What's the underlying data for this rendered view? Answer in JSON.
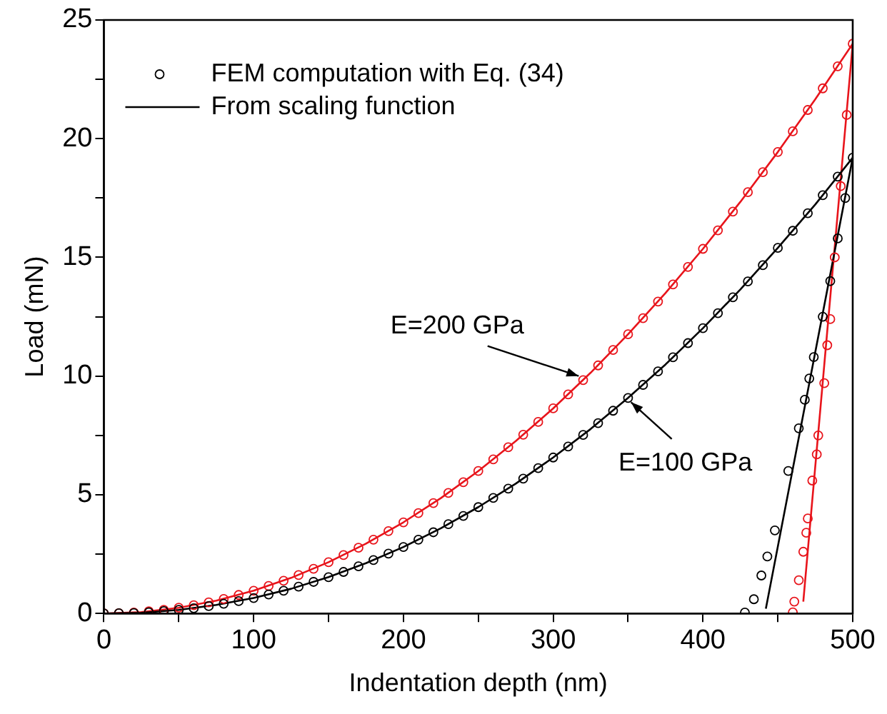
{
  "chart_data": {
    "type": "scatter",
    "xlabel": "Indentation depth (nm)",
    "ylabel": "Load (mN)",
    "xlim": [
      0,
      500
    ],
    "ylim": [
      0,
      25
    ],
    "xticks": [
      0,
      {
        "value": 50,
        "label": null
      },
      100,
      {
        "value": 150,
        "label": null
      },
      200,
      {
        "value": 250,
        "label": null
      },
      300,
      {
        "value": 350,
        "label": null
      },
      400,
      {
        "value": 450,
        "label": null
      },
      500
    ],
    "yticks": [
      0,
      {
        "value": 2.5,
        "label": null
      },
      5,
      {
        "value": 7.5,
        "label": null
      },
      10,
      {
        "value": 12.5,
        "label": null
      },
      15,
      {
        "value": 17.5,
        "label": null
      },
      20,
      {
        "value": 22.5,
        "label": null
      },
      25
    ],
    "grid": false,
    "legend": "top left",
    "series": [
      {
        "name": "FEM computation with Eq. (34)",
        "type": "scatter",
        "marker": "circle",
        "color": "#000000",
        "x": [
          0,
          10,
          20,
          30,
          40,
          50,
          60,
          70,
          80,
          90,
          100,
          110,
          120,
          130,
          140,
          150,
          160,
          170,
          180,
          190,
          200,
          210,
          220,
          230,
          240,
          250,
          260,
          270,
          280,
          290,
          300,
          310,
          320,
          330,
          340,
          350,
          360,
          370,
          380,
          390,
          400,
          410,
          420,
          430,
          440,
          450,
          460,
          470,
          480,
          490,
          500,
          495,
          490,
          485,
          480,
          474,
          471,
          468,
          464,
          457,
          448,
          443,
          439,
          434,
          428
        ],
        "values": [
          0,
          0.01,
          0.02,
          0.05,
          0.1,
          0.15,
          0.22,
          0.31,
          0.41,
          0.52,
          0.65,
          0.8,
          0.96,
          1.13,
          1.33,
          1.53,
          1.75,
          1.99,
          2.25,
          2.52,
          2.8,
          3.11,
          3.42,
          3.76,
          4.11,
          4.48,
          4.87,
          5.26,
          5.68,
          6.12,
          6.57,
          7.03,
          7.52,
          8.02,
          8.54,
          9.08,
          9.63,
          10.2,
          10.79,
          11.39,
          12.02,
          12.65,
          13.32,
          13.99,
          14.67,
          15.4,
          16.12,
          16.86,
          17.62,
          18.4,
          19.2,
          17.5,
          15.8,
          14.0,
          12.5,
          10.8,
          9.9,
          9.0,
          7.8,
          6.0,
          3.5,
          2.4,
          1.6,
          0.6,
          0.04
        ]
      },
      {
        "type": "scatter",
        "marker": "circle",
        "color": "#e8141b",
        "x": [
          0,
          10,
          20,
          30,
          40,
          50,
          60,
          70,
          80,
          90,
          100,
          110,
          120,
          130,
          140,
          150,
          160,
          170,
          180,
          190,
          200,
          210,
          220,
          230,
          240,
          250,
          260,
          270,
          280,
          290,
          300,
          310,
          320,
          330,
          340,
          350,
          360,
          370,
          380,
          390,
          400,
          410,
          420,
          430,
          440,
          450,
          460,
          470,
          480,
          490,
          500,
          496,
          492,
          488,
          485,
          483,
          481,
          477,
          476,
          473,
          470,
          469,
          467,
          464,
          461,
          460
        ],
        "values": [
          0,
          0.01,
          0.04,
          0.09,
          0.15,
          0.24,
          0.35,
          0.47,
          0.61,
          0.78,
          0.96,
          1.16,
          1.38,
          1.62,
          1.88,
          2.16,
          2.46,
          2.77,
          3.11,
          3.47,
          3.84,
          4.23,
          4.65,
          5.08,
          5.53,
          6.0,
          6.49,
          7.0,
          7.53,
          8.07,
          8.64,
          9.23,
          9.83,
          10.45,
          11.1,
          11.76,
          12.44,
          13.14,
          13.86,
          14.6,
          15.36,
          16.14,
          16.93,
          17.75,
          18.59,
          19.44,
          20.31,
          21.21,
          22.12,
          23.05,
          24.0,
          21.0,
          18.0,
          15.0,
          12.4,
          11.3,
          9.7,
          7.5,
          6.7,
          5.6,
          4.0,
          3.4,
          2.6,
          1.4,
          0.5,
          0.05
        ]
      },
      {
        "name": "From scaling function",
        "type": "line",
        "marker": "none",
        "color": "#000000",
        "x": [
          0,
          25,
          50,
          75,
          100,
          125,
          150,
          175,
          200,
          225,
          250,
          275,
          300,
          325,
          350,
          375,
          400,
          425,
          450,
          475,
          500,
          442
        ],
        "values": [
          0,
          0.03,
          0.15,
          0.36,
          0.65,
          1.04,
          1.53,
          2.12,
          2.8,
          3.59,
          4.48,
          5.47,
          6.57,
          7.77,
          9.08,
          10.49,
          12.02,
          13.65,
          15.4,
          17.23,
          19.2,
          0.2
        ]
      },
      {
        "type": "line",
        "marker": "none",
        "color": "#e8141b",
        "x": [
          0,
          25,
          50,
          75,
          100,
          125,
          150,
          175,
          200,
          225,
          250,
          275,
          300,
          325,
          350,
          375,
          400,
          425,
          450,
          475,
          500,
          467
        ],
        "values": [
          0,
          0.06,
          0.24,
          0.54,
          0.96,
          1.5,
          2.16,
          2.94,
          3.84,
          4.86,
          6.0,
          7.26,
          8.64,
          10.14,
          11.76,
          13.5,
          15.36,
          17.34,
          19.44,
          21.66,
          24.0,
          0.5
        ]
      }
    ],
    "annotations": [
      {
        "text": "E=200 GPa",
        "x": 317,
        "y": 10
      },
      {
        "text": "E=100 GPa",
        "x": 352,
        "y": 8.9
      }
    ]
  }
}
